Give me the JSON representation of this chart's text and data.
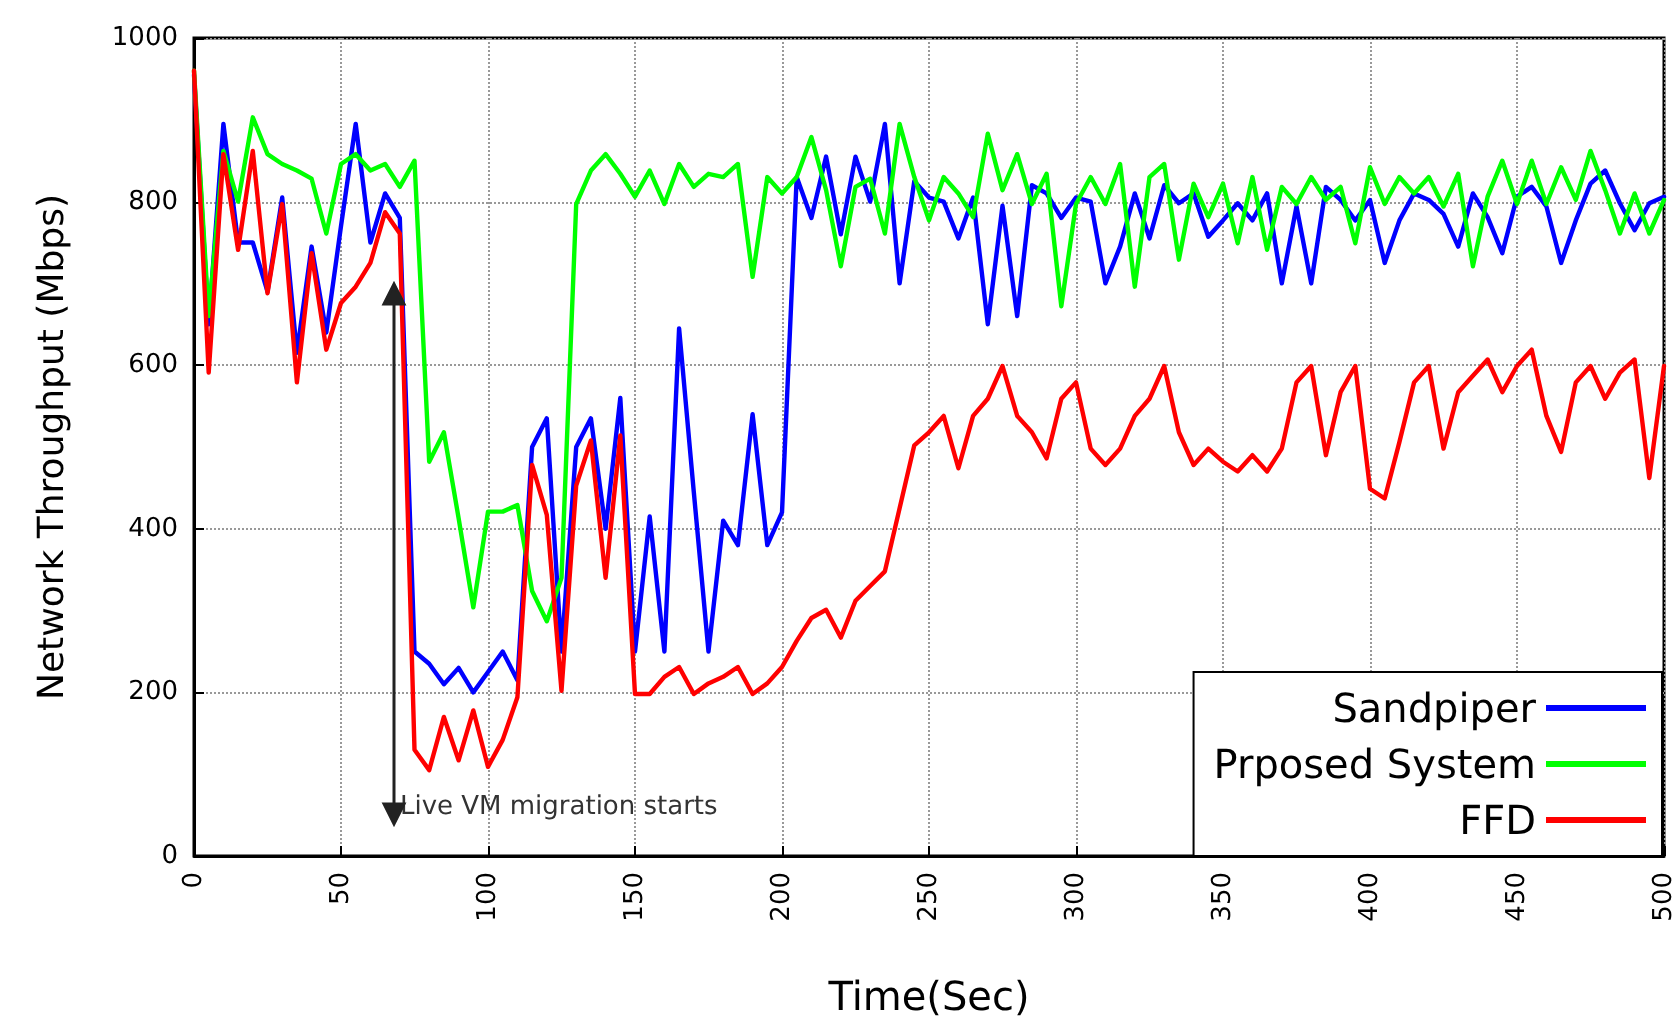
{
  "chart_data": {
    "type": "line",
    "xlabel": "Time(Sec)",
    "ylabel": "Network Throughput (Mbps)",
    "x": [
      0,
      5,
      10,
      15,
      20,
      25,
      30,
      35,
      40,
      45,
      50,
      55,
      60,
      65,
      70,
      75,
      80,
      85,
      90,
      95,
      100,
      105,
      110,
      115,
      120,
      125,
      130,
      135,
      140,
      145,
      150,
      155,
      160,
      165,
      170,
      175,
      180,
      185,
      190,
      195,
      200,
      205,
      210,
      215,
      220,
      225,
      230,
      235,
      240,
      245,
      250,
      255,
      260,
      265,
      270,
      275,
      280,
      285,
      290,
      295,
      300,
      305,
      310,
      315,
      320,
      325,
      330,
      335,
      340,
      345,
      350,
      355,
      360,
      365,
      370,
      375,
      380,
      385,
      390,
      395,
      400,
      405,
      410,
      415,
      420,
      425,
      430,
      435,
      440,
      445,
      450,
      455,
      460,
      465,
      470,
      475,
      480,
      485,
      490,
      495,
      500
    ],
    "series": [
      {
        "name": "Sandpiper",
        "color": "#0000ff",
        "values": [
          955,
          650,
          895,
          750,
          750,
          690,
          805,
          615,
          745,
          640,
          770,
          895,
          750,
          810,
          780,
          250,
          235,
          210,
          230,
          200,
          225,
          250,
          215,
          500,
          535,
          250,
          500,
          535,
          400,
          560,
          250,
          415,
          250,
          645,
          445,
          250,
          410,
          380,
          540,
          380,
          420,
          830,
          780,
          855,
          760,
          855,
          800,
          895,
          700,
          825,
          805,
          800,
          755,
          805,
          650,
          795,
          660,
          820,
          810,
          780,
          805,
          800,
          700,
          745,
          810,
          755,
          820,
          798,
          810,
          757,
          777,
          798,
          777,
          810,
          700,
          794,
          700,
          818,
          802,
          777,
          802,
          725,
          777,
          810,
          802,
          785,
          745,
          810,
          781,
          737,
          806,
          818,
          794,
          725,
          777,
          822,
          838,
          798,
          765,
          798,
          806
        ]
      },
      {
        "name": "Prposed System",
        "color": "#00ff00",
        "values": [
          960,
          660,
          862,
          800,
          903,
          858,
          846,
          838,
          828,
          761,
          846,
          858,
          838,
          846,
          818,
          850,
          482,
          518,
          413,
          304,
          421,
          421,
          429,
          324,
          287,
          340,
          797,
          838,
          858,
          834,
          806,
          838,
          797,
          846,
          818,
          834,
          830,
          846,
          708,
          830,
          810,
          830,
          879,
          814,
          721,
          818,
          828,
          761,
          895,
          830,
          777,
          830,
          810,
          781,
          883,
          814,
          858,
          797,
          834,
          672,
          797,
          830,
          797,
          846,
          696,
          830,
          846,
          729,
          822,
          781,
          822,
          749,
          830,
          741,
          818,
          797,
          830,
          802,
          818,
          749,
          842,
          797,
          830,
          810,
          830,
          794,
          834,
          721,
          806,
          850,
          797,
          850,
          797,
          842,
          802,
          862,
          814,
          761,
          810,
          761,
          802
        ]
      },
      {
        "name": "FFD",
        "color": "#ff0000",
        "values": [
          960,
          591,
          858,
          741,
          862,
          688,
          797,
          579,
          737,
          619,
          676,
          696,
          725,
          787,
          761,
          130,
          105,
          170,
          117,
          178,
          109,
          142,
          194,
          478,
          417,
          202,
          453,
          508,
          340,
          514,
          198,
          198,
          219,
          231,
          198,
          211,
          219,
          231,
          198,
          211,
          231,
          263,
          291,
          301,
          267,
          312,
          330,
          348,
          425,
          502,
          518,
          538,
          474,
          538,
          559,
          599,
          538,
          518,
          486,
          559,
          579,
          498,
          478,
          498,
          538,
          559,
          599,
          518,
          478,
          498,
          482,
          470,
          490,
          470,
          498,
          579,
          599,
          490,
          567,
          599,
          449,
          437,
          506,
          579,
          599,
          498,
          567,
          587,
          607,
          567,
          599,
          619,
          538,
          494,
          579,
          599,
          559,
          591,
          607,
          462,
          599
        ]
      }
    ],
    "xlim": [
      0,
      500
    ],
    "xticks": [
      0,
      50,
      100,
      150,
      200,
      250,
      300,
      350,
      400,
      450,
      500
    ],
    "ylim": [
      0,
      1000
    ],
    "yticks": [
      0,
      200,
      400,
      600,
      800,
      1000
    ],
    "ref_lines": [
      {
        "axis": "x",
        "value": 68,
        "label": "Live VM migration starts"
      }
    ],
    "grid": true,
    "legend": "bottom right",
    "marker": "none",
    "line_style": "solid"
  }
}
